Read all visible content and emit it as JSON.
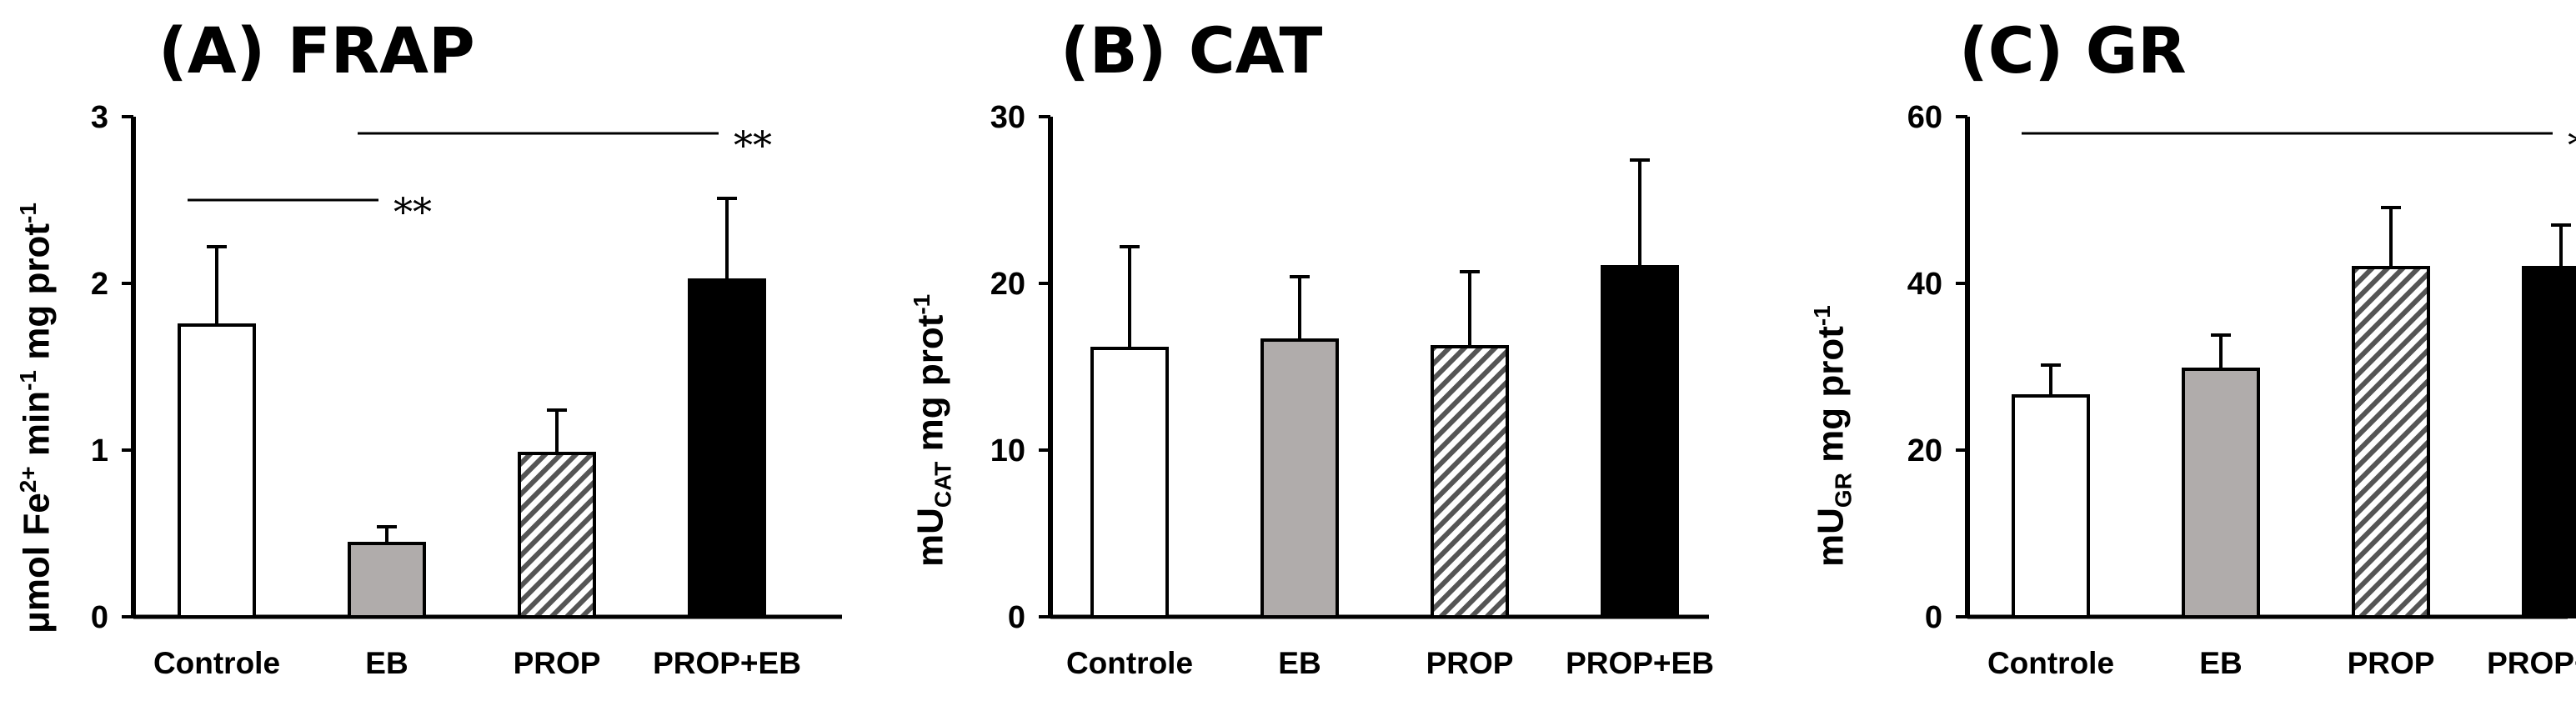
{
  "chart_data": [
    {
      "type": "bar",
      "title": "(A) FRAP",
      "ylabel": {
        "prefix": "μmol Fe",
        "sup1": "2+",
        "mid": " min",
        "sup2": "-1",
        "mid2": " mg prot",
        "sup3": "-1"
      },
      "xlabel": "",
      "categories": [
        "Controle",
        "EB",
        "PROP",
        "PROP+EB"
      ],
      "values": [
        1.75,
        0.44,
        0.98,
        2.02
      ],
      "errors": [
        0.47,
        0.1,
        0.26,
        0.49
      ],
      "ylim": [
        0,
        3
      ],
      "yticks": [
        "0",
        "1",
        "2",
        "3"
      ],
      "fills": [
        "white",
        "gray",
        "hatch",
        "black"
      ],
      "significance": [
        {
          "from": 0,
          "to": 1,
          "y": 2.5,
          "label": "**"
        },
        {
          "from": 1,
          "to": 3,
          "y": 2.9,
          "label": "**"
        }
      ]
    },
    {
      "type": "bar",
      "title": "(B) CAT",
      "ylabel": {
        "prefix": "mU",
        "sub": "CAT",
        "suffix": " mg prot",
        "sup": "-1"
      },
      "xlabel": "",
      "categories": [
        "Controle",
        "EB",
        "PROP",
        "PROP+EB"
      ],
      "values": [
        16.1,
        16.6,
        16.2,
        21.0
      ],
      "errors": [
        6.1,
        3.8,
        4.5,
        6.4
      ],
      "ylim": [
        0,
        30
      ],
      "yticks": [
        "0",
        "10",
        "20",
        "30"
      ],
      "fills": [
        "white",
        "gray",
        "hatch",
        "black"
      ],
      "significance": []
    },
    {
      "type": "bar",
      "title": "(C) GR",
      "ylabel": {
        "prefix": "mU",
        "sub": "GR",
        "suffix": " mg prot",
        "sup": "-1"
      },
      "xlabel": "",
      "categories": [
        "Controle",
        "EB",
        "PROP",
        "PROP+EB"
      ],
      "values": [
        26.5,
        29.7,
        41.9,
        41.9
      ],
      "errors": [
        3.7,
        4.1,
        7.2,
        5.1
      ],
      "ylim": [
        0,
        60
      ],
      "yticks": [
        "0",
        "20",
        "40",
        "60"
      ],
      "fills": [
        "white",
        "gray",
        "hatch",
        "black"
      ],
      "significance": [
        {
          "from": 0,
          "to": 3,
          "y": 58,
          "label": "*"
        }
      ]
    }
  ],
  "colors": {
    "axis": "#000000",
    "gray_fill": "#b0acab",
    "black_fill": "#000000",
    "white_fill": "#ffffff"
  }
}
